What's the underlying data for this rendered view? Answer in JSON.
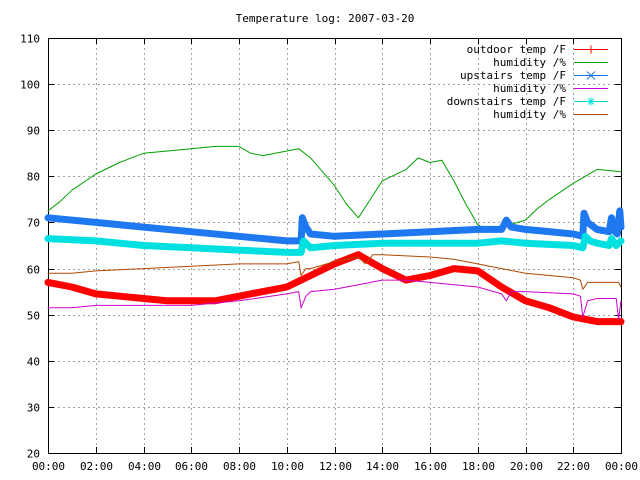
{
  "chart_data": {
    "type": "line",
    "title": "Temperature log: 2007-03-20",
    "xlabel": "",
    "ylabel": "",
    "xlim": [
      0,
      24
    ],
    "ylim": [
      20,
      110
    ],
    "grid": true,
    "legend_position": "top-right",
    "x_ticks": [
      {
        "value": 0,
        "label": "00:00"
      },
      {
        "value": 2,
        "label": "02:00"
      },
      {
        "value": 4,
        "label": "04:00"
      },
      {
        "value": 6,
        "label": "06:00"
      },
      {
        "value": 8,
        "label": "08:00"
      },
      {
        "value": 10,
        "label": "10:00"
      },
      {
        "value": 12,
        "label": "12:00"
      },
      {
        "value": 14,
        "label": "14:00"
      },
      {
        "value": 16,
        "label": "16:00"
      },
      {
        "value": 18,
        "label": "18:00"
      },
      {
        "value": 20,
        "label": "20:00"
      },
      {
        "value": 22,
        "label": "22:00"
      },
      {
        "value": 24,
        "label": "00:00"
      }
    ],
    "y_ticks": [
      {
        "value": 20,
        "label": "20"
      },
      {
        "value": 30,
        "label": "30"
      },
      {
        "value": 40,
        "label": "40"
      },
      {
        "value": 50,
        "label": "50"
      },
      {
        "value": 60,
        "label": "60"
      },
      {
        "value": 70,
        "label": "70"
      },
      {
        "value": 80,
        "label": "80"
      },
      {
        "value": 90,
        "label": "90"
      },
      {
        "value": 100,
        "label": "100"
      },
      {
        "value": 110,
        "label": "110"
      }
    ],
    "series": [
      {
        "name": "outdoor temp /F",
        "color": "#ff0000",
        "style": "thick-points",
        "points": [
          [
            0,
            57
          ],
          [
            1,
            56
          ],
          [
            2,
            54.5
          ],
          [
            3,
            54
          ],
          [
            4,
            53.5
          ],
          [
            5,
            53
          ],
          [
            6,
            53
          ],
          [
            7,
            53
          ],
          [
            8,
            54
          ],
          [
            9,
            55
          ],
          [
            10,
            56
          ],
          [
            11,
            58.5
          ],
          [
            12,
            61
          ],
          [
            13,
            63
          ],
          [
            14,
            60
          ],
          [
            15,
            57.5
          ],
          [
            16,
            58.5
          ],
          [
            17,
            60
          ],
          [
            18,
            59.5
          ],
          [
            19,
            56
          ],
          [
            20,
            53
          ],
          [
            21,
            51.5
          ],
          [
            22,
            49.5
          ],
          [
            23,
            48.5
          ],
          [
            24,
            48.5
          ]
        ]
      },
      {
        "name": "humidity /%",
        "color": "#00a000",
        "style": "line",
        "points": [
          [
            0,
            72.5
          ],
          [
            0.5,
            74.5
          ],
          [
            1,
            77
          ],
          [
            2,
            80.5
          ],
          [
            3,
            83
          ],
          [
            4,
            85
          ],
          [
            5,
            85.5
          ],
          [
            6,
            86
          ],
          [
            7,
            86.5
          ],
          [
            8,
            86.5
          ],
          [
            8.5,
            85
          ],
          [
            9,
            84.5
          ],
          [
            10,
            85.5
          ],
          [
            10.5,
            86
          ],
          [
            11,
            84
          ],
          [
            12,
            78
          ],
          [
            12.5,
            74
          ],
          [
            13,
            71
          ],
          [
            13.5,
            75
          ],
          [
            14,
            79
          ],
          [
            15,
            81.5
          ],
          [
            15.5,
            84
          ],
          [
            16,
            83
          ],
          [
            16.5,
            83.5
          ],
          [
            17,
            79
          ],
          [
            17.5,
            74
          ],
          [
            18,
            69.5
          ],
          [
            18.5,
            68
          ],
          [
            19,
            69
          ],
          [
            20,
            70.5
          ],
          [
            20.5,
            73
          ],
          [
            21,
            75
          ],
          [
            22,
            78.5
          ],
          [
            23,
            81.5
          ],
          [
            24,
            81
          ]
        ]
      },
      {
        "name": "upstairs temp /F",
        "color": "#1e78f0",
        "style": "thick-points",
        "points": [
          [
            0,
            71
          ],
          [
            2,
            70
          ],
          [
            4,
            69
          ],
          [
            6,
            68
          ],
          [
            8,
            67
          ],
          [
            10,
            66
          ],
          [
            10.6,
            66
          ],
          [
            10.65,
            71
          ],
          [
            10.8,
            69
          ],
          [
            11,
            67.5
          ],
          [
            12,
            67
          ],
          [
            14,
            67.5
          ],
          [
            16,
            68
          ],
          [
            18,
            68.5
          ],
          [
            19,
            68.5
          ],
          [
            19.2,
            70.5
          ],
          [
            19.4,
            69
          ],
          [
            20,
            68.5
          ],
          [
            22,
            67.5
          ],
          [
            22.4,
            67
          ],
          [
            22.45,
            72
          ],
          [
            22.6,
            70
          ],
          [
            23,
            68.5
          ],
          [
            23.5,
            68
          ],
          [
            23.6,
            71
          ],
          [
            23.75,
            68
          ],
          [
            23.85,
            67.5
          ],
          [
            23.95,
            72.5
          ],
          [
            24,
            69
          ]
        ]
      },
      {
        "name": "humidity /%",
        "color": "#cc00cc",
        "style": "line",
        "points": [
          [
            0,
            51.5
          ],
          [
            1,
            51.5
          ],
          [
            2,
            52
          ],
          [
            4,
            52
          ],
          [
            6,
            52
          ],
          [
            8,
            53
          ],
          [
            10,
            54.5
          ],
          [
            10.5,
            55
          ],
          [
            10.6,
            51.5
          ],
          [
            10.8,
            54
          ],
          [
            11,
            55
          ],
          [
            12,
            55.5
          ],
          [
            13,
            56.5
          ],
          [
            14,
            57.5
          ],
          [
            15,
            57.5
          ],
          [
            16,
            57
          ],
          [
            17,
            56.5
          ],
          [
            18,
            56
          ],
          [
            19,
            54.5
          ],
          [
            19.2,
            53
          ],
          [
            19.4,
            55
          ],
          [
            20,
            55
          ],
          [
            22,
            54.5
          ],
          [
            22.3,
            54
          ],
          [
            22.4,
            49.5
          ],
          [
            22.6,
            53
          ],
          [
            23,
            53.5
          ],
          [
            23.8,
            53.5
          ],
          [
            23.9,
            49
          ],
          [
            24,
            53
          ]
        ]
      },
      {
        "name": "downstairs temp /F",
        "color": "#00e0e0",
        "style": "thick-points",
        "points": [
          [
            0,
            66.5
          ],
          [
            2,
            66
          ],
          [
            4,
            65
          ],
          [
            6,
            64.5
          ],
          [
            8,
            64
          ],
          [
            10,
            63.5
          ],
          [
            10.6,
            63.5
          ],
          [
            10.7,
            66
          ],
          [
            10.9,
            65
          ],
          [
            11,
            64.5
          ],
          [
            12,
            65
          ],
          [
            14,
            65.5
          ],
          [
            16,
            65.5
          ],
          [
            18,
            65.5
          ],
          [
            19,
            66
          ],
          [
            20,
            65.5
          ],
          [
            22,
            65
          ],
          [
            22.4,
            64.5
          ],
          [
            22.5,
            67
          ],
          [
            22.7,
            66
          ],
          [
            23,
            65.5
          ],
          [
            23.5,
            65
          ],
          [
            23.6,
            66.5
          ],
          [
            23.8,
            65
          ],
          [
            24,
            66
          ]
        ]
      },
      {
        "name": "humidity /%",
        "color": "#b04800",
        "style": "line",
        "points": [
          [
            0,
            59
          ],
          [
            1,
            59
          ],
          [
            2,
            59.5
          ],
          [
            4,
            60
          ],
          [
            6,
            60.5
          ],
          [
            8,
            61
          ],
          [
            10,
            61
          ],
          [
            10.5,
            61.5
          ],
          [
            10.6,
            58.5
          ],
          [
            10.8,
            60
          ],
          [
            11,
            60
          ],
          [
            12,
            61.5
          ],
          [
            13,
            62.5
          ],
          [
            13.3,
            61
          ],
          [
            13.6,
            63
          ],
          [
            14,
            63
          ],
          [
            16,
            62.5
          ],
          [
            17,
            62
          ],
          [
            18,
            61
          ],
          [
            19,
            60
          ],
          [
            20,
            59
          ],
          [
            22,
            58
          ],
          [
            22.3,
            57.5
          ],
          [
            22.4,
            55.5
          ],
          [
            22.6,
            57
          ],
          [
            23,
            57
          ],
          [
            23.9,
            57
          ],
          [
            24,
            56
          ]
        ]
      }
    ]
  }
}
